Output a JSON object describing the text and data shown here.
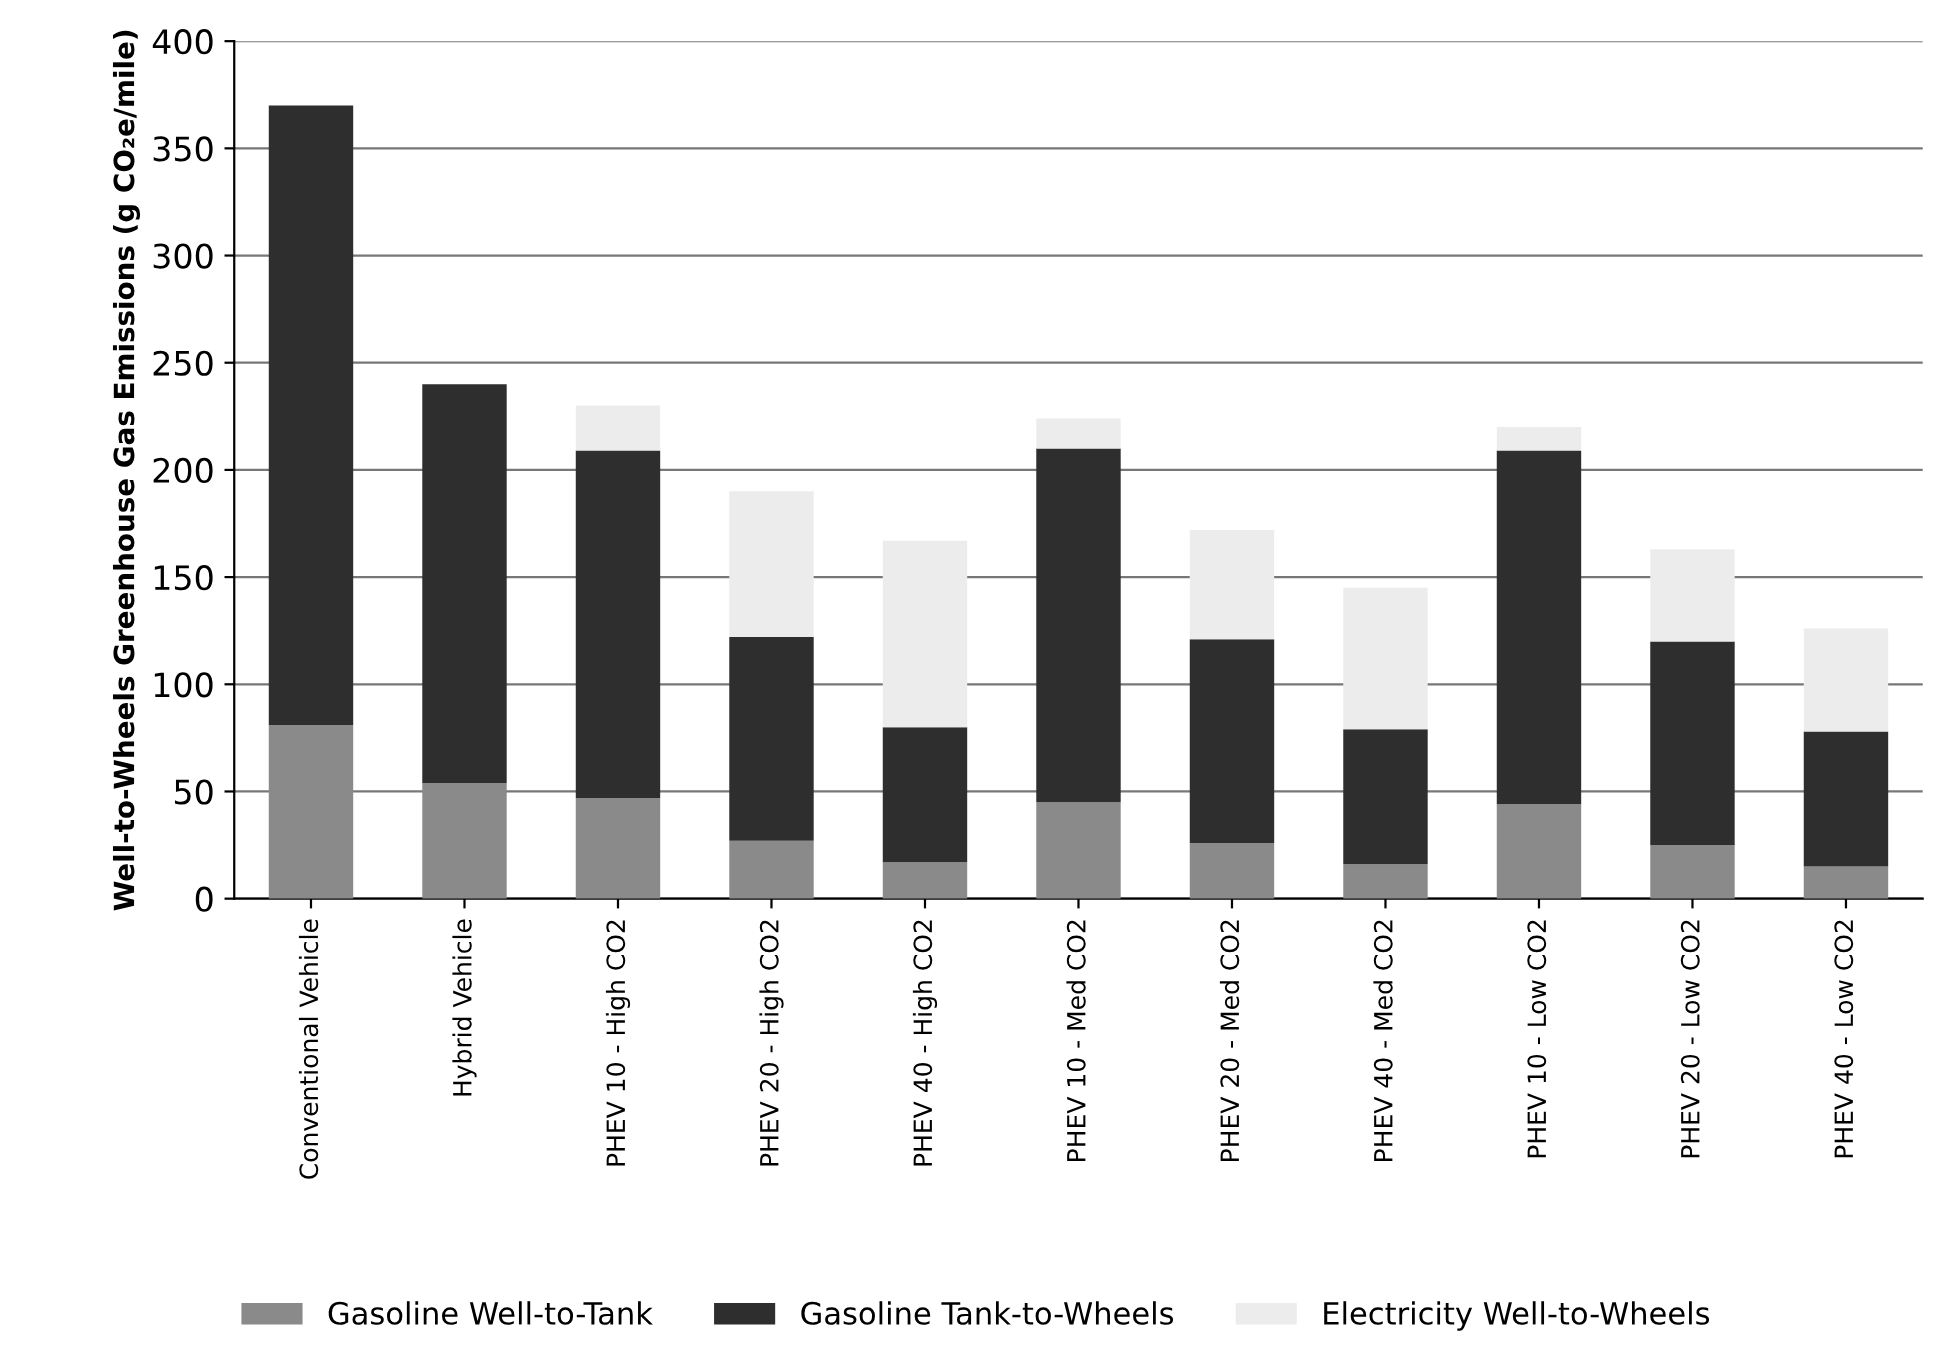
{
  "chart_data": {
    "type": "bar",
    "stacked": true,
    "ylabel": "Well-to-Wheels Greenhouse Gas Emissions (g CO₂e/mile)",
    "categories": [
      "Conventional Vehicle",
      "Hybrid Vehicle",
      "PHEV 10 - High CO2",
      "PHEV 20 - High CO2",
      "PHEV 40 - High CO2",
      "PHEV 10 - Med CO2",
      "PHEV 20 - Med CO2",
      "PHEV 40 - Med CO2",
      "PHEV 10 - Low CO2",
      "PHEV 20 - Low CO2",
      "PHEV 40 - Low CO2"
    ],
    "series": [
      {
        "name": "Gasoline Well-to-Tank",
        "color": "#8a8a8a",
        "values": [
          81,
          54,
          47,
          27,
          17,
          45,
          26,
          16,
          44,
          25,
          15
        ]
      },
      {
        "name": "Gasoline Tank-to-Wheels",
        "color": "#2e2e2e",
        "values": [
          289,
          186,
          162,
          95,
          63,
          165,
          95,
          63,
          165,
          95,
          63
        ]
      },
      {
        "name": "Electricity Well-to-Wheels",
        "color": "#ececec",
        "values": [
          0,
          0,
          21,
          68,
          87,
          14,
          51,
          66,
          11,
          43,
          48
        ]
      }
    ],
    "ylim": [
      0,
      400
    ],
    "yticks": [
      0,
      50,
      100,
      150,
      200,
      250,
      300,
      350,
      400
    ],
    "grid": "y",
    "legend": "bottom"
  }
}
